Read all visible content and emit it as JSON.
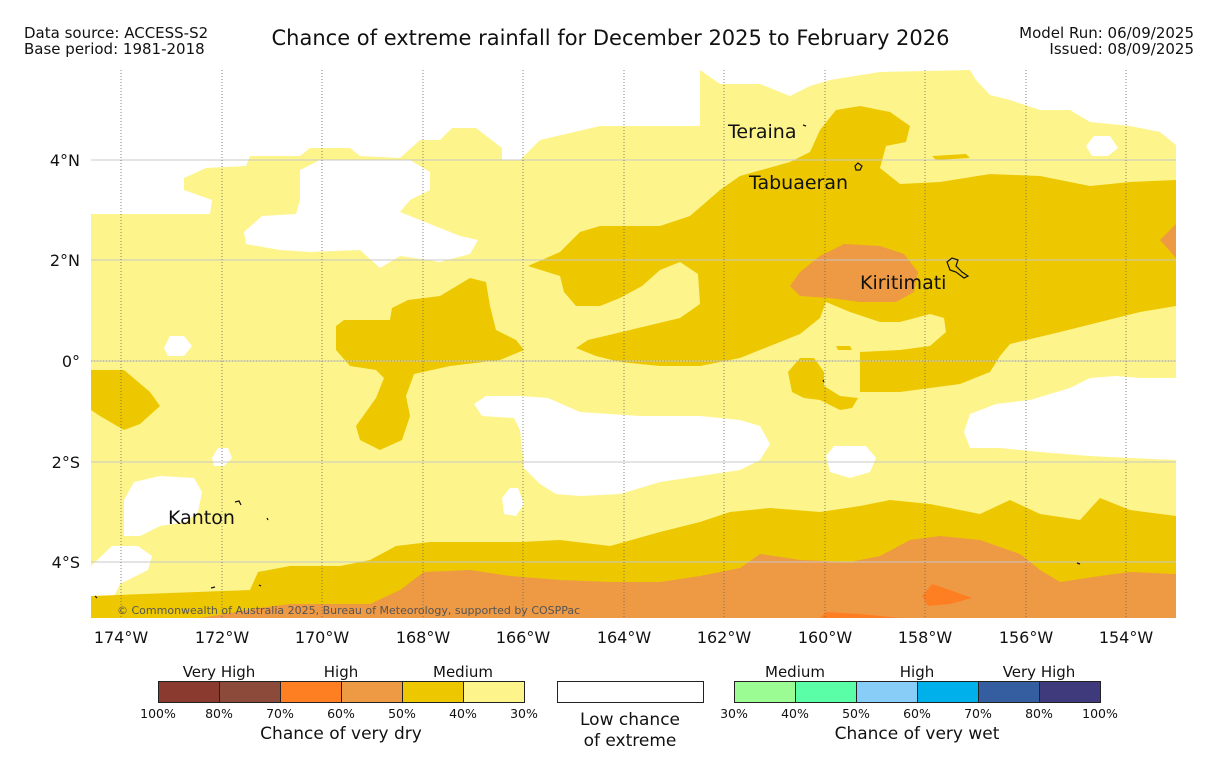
{
  "header": {
    "source_line1": "Data source: ACCESS-S2",
    "source_line2": "Base period: 1981-2018",
    "title": "Chance of extreme rainfall for December 2025 to February 2026",
    "run_line1": "Model Run: 06/09/2025",
    "run_line2": "Issued: 08/09/2025"
  },
  "map": {
    "lat_labels": [
      "4°N",
      "2°N",
      "0°",
      "2°S",
      "4°S"
    ],
    "lon_labels": [
      "174°W",
      "172°W",
      "170°W",
      "168°W",
      "166°W",
      "164°W",
      "162°W",
      "160°W",
      "158°W",
      "156°W",
      "154°W"
    ],
    "places": {
      "teraina": "Teraina",
      "tabuaeran": "Tabuaeran",
      "kiritimati": "Kiritimati",
      "kanton": "Kanton"
    },
    "copyright": "© Commonwealth of Australia 2025, Bureau of Meteorology, supported by COSPPac",
    "colors": {
      "medium_dry": "#fdf48c",
      "high_dry_50": "#edc800",
      "high_dry_60": "#ee9944",
      "very_high_dry_70": "#fe7f22",
      "low": "#ffffff"
    }
  },
  "legend": {
    "dry": {
      "heads": [
        "Very High",
        "High",
        "Medium"
      ],
      "ticks": [
        "100%",
        "80%",
        "70%",
        "60%",
        "50%",
        "40%",
        "30%"
      ],
      "colors": [
        "#8b3a2f",
        "#8b4a3a",
        "#fe7f22",
        "#ee9944",
        "#edc800",
        "#fdf48c"
      ],
      "footer": "Chance of very dry"
    },
    "low": {
      "line1": "Low chance",
      "line2": "of extreme"
    },
    "wet": {
      "heads": [
        "Medium",
        "High",
        "Very High"
      ],
      "ticks": [
        "30%",
        "40%",
        "50%",
        "60%",
        "70%",
        "80%",
        "100%"
      ],
      "colors": [
        "#9cfc94",
        "#5afea6",
        "#88ccf8",
        "#00b0ea",
        "#345ea0",
        "#3e3a7c"
      ],
      "footer": "Chance of very wet"
    }
  }
}
